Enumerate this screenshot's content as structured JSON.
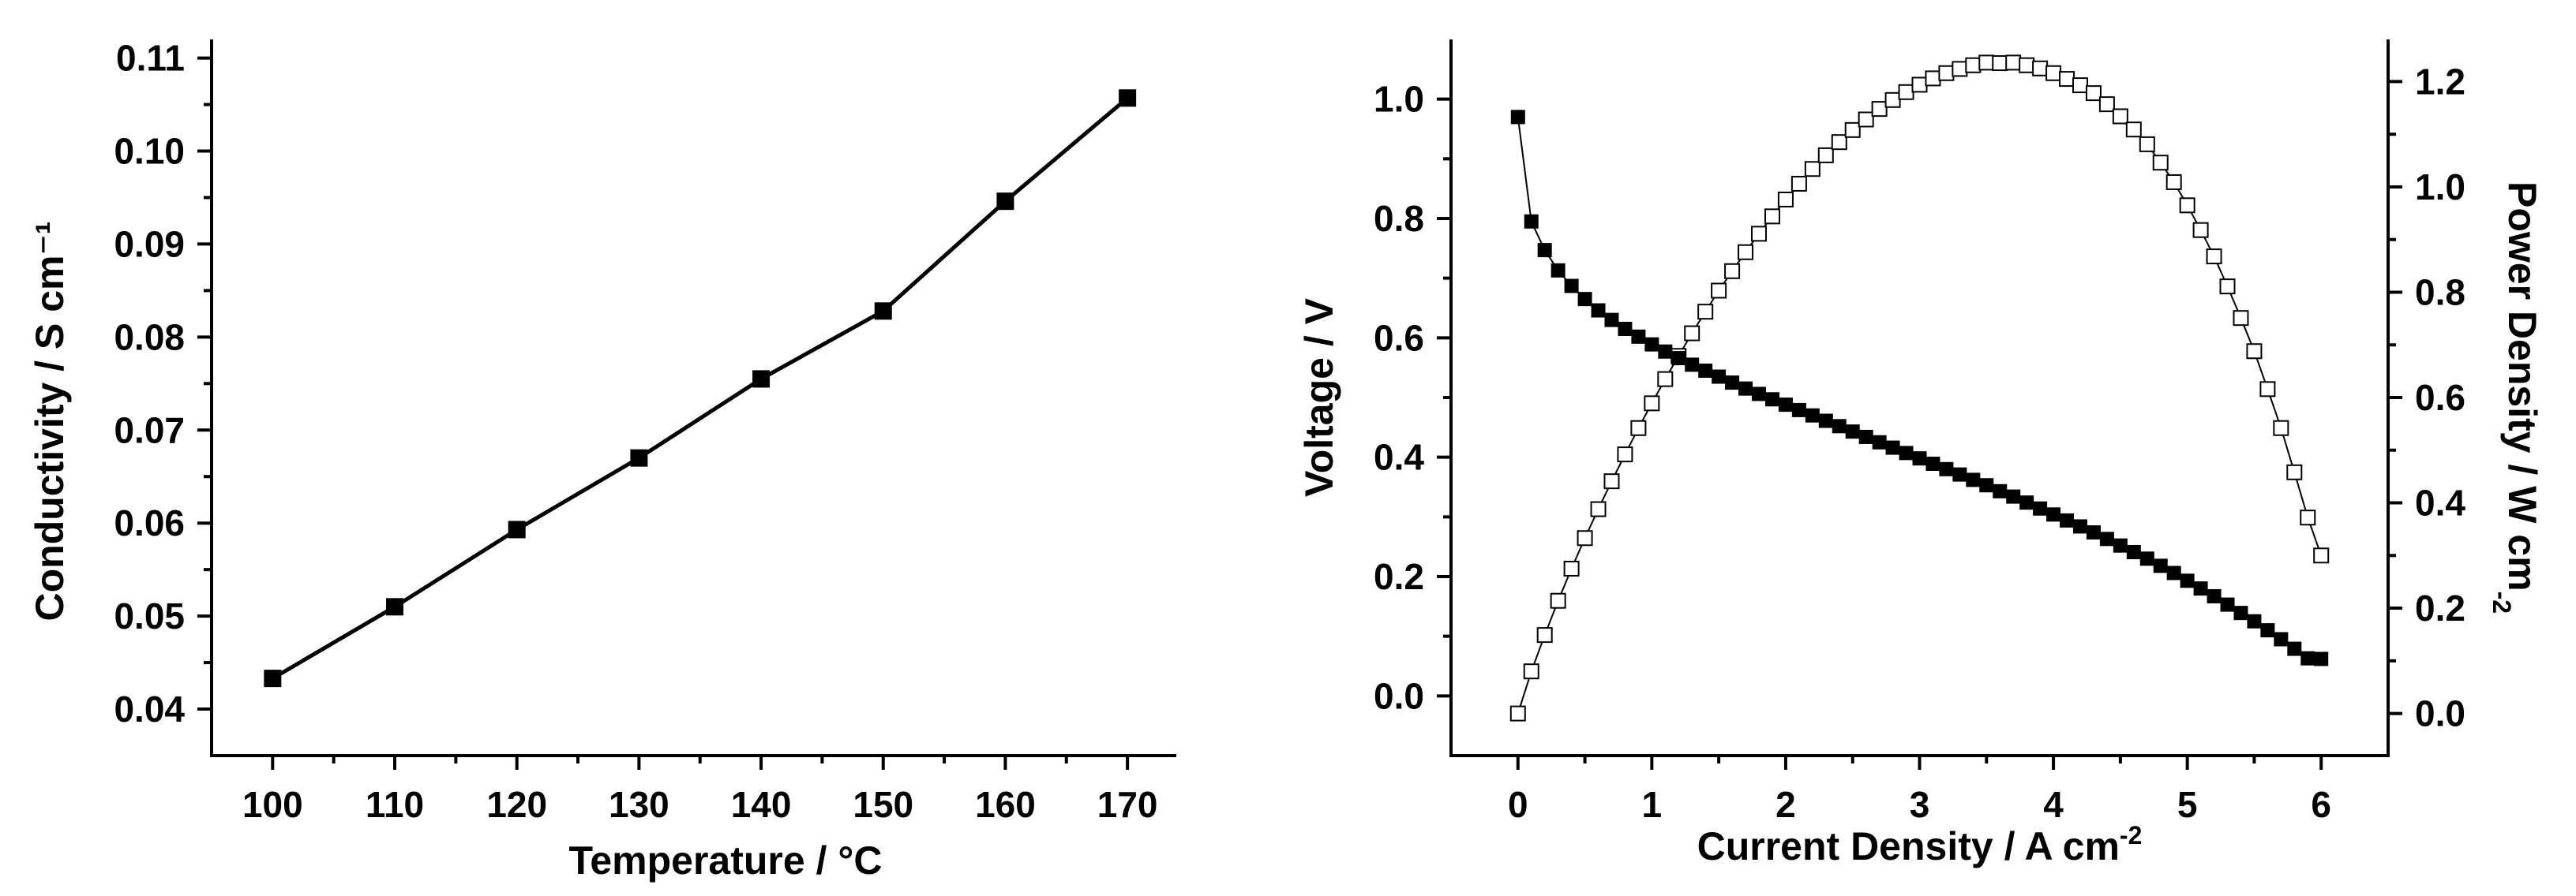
{
  "chart_data": [
    {
      "type": "line",
      "title": "",
      "xlabel": "Temperature / °C",
      "ylabel": "Conductivity / S cm⁻¹",
      "xlim": [
        95,
        174
      ],
      "ylim": [
        0.035,
        0.112
      ],
      "xticks": [
        100,
        110,
        120,
        130,
        140,
        150,
        160,
        170
      ],
      "xtick_labels": [
        "100",
        "110",
        "120",
        "130",
        "140",
        "150",
        "160",
        "170"
      ],
      "yticks": [
        0.04,
        0.05,
        0.06,
        0.07,
        0.08,
        0.09,
        0.1,
        0.11
      ],
      "ytick_labels": [
        "0.04",
        "0.05",
        "0.06",
        "0.07",
        "0.08",
        "0.09",
        "0.10",
        "0.11"
      ],
      "grid": false,
      "series": [
        {
          "name": "Conductivity",
          "marker": "filled-square",
          "x": [
            100,
            110,
            120,
            130,
            140,
            150,
            160,
            170
          ],
          "y": [
            0.0433,
            0.051,
            0.0593,
            0.067,
            0.0755,
            0.0828,
            0.0946,
            0.1057
          ]
        }
      ]
    },
    {
      "type": "line",
      "title": "",
      "xlabel": "Current Density / A cm",
      "xlabel_superscript": "-2",
      "ylabel": "Voltage / V",
      "y2label": "Power Density / W cm",
      "y2label_superscript": "-2",
      "xlim": [
        -0.5,
        6.5
      ],
      "ylim": [
        -0.1,
        1.1
      ],
      "y2lim": [
        -0.08,
        1.28
      ],
      "xticks": [
        0,
        1,
        2,
        3,
        4,
        5,
        6
      ],
      "xtick_labels": [
        "0",
        "1",
        "2",
        "3",
        "4",
        "5",
        "6"
      ],
      "yticks": [
        0.0,
        0.2,
        0.4,
        0.6,
        0.8,
        1.0
      ],
      "ytick_labels": [
        "0.0",
        "0.2",
        "0.4",
        "0.6",
        "0.8",
        "1.0"
      ],
      "y2ticks": [
        0.0,
        0.2,
        0.4,
        0.6,
        0.8,
        1.0,
        1.2
      ],
      "y2tick_labels": [
        "0.0",
        "0.2",
        "0.4",
        "0.6",
        "0.8",
        "1.0",
        "1.2"
      ],
      "grid": false,
      "series": [
        {
          "name": "Voltage",
          "axis": "left",
          "marker": "filled-square",
          "x": [
            0.0,
            0.1,
            0.2,
            0.3,
            0.4,
            0.5,
            0.6,
            0.7,
            0.8,
            0.9,
            1.0,
            1.1,
            1.2,
            1.3,
            1.4,
            1.5,
            1.6,
            1.7,
            1.8,
            1.9,
            2.0,
            2.1,
            2.2,
            2.3,
            2.4,
            2.5,
            2.6,
            2.7,
            2.8,
            2.9,
            3.0,
            3.1,
            3.2,
            3.3,
            3.4,
            3.5,
            3.6,
            3.7,
            3.8,
            3.9,
            4.0,
            4.1,
            4.2,
            4.3,
            4.4,
            4.5,
            4.6,
            4.7,
            4.8,
            4.9,
            5.0,
            5.1,
            5.2,
            5.3,
            5.4,
            5.5,
            5.6,
            5.7,
            5.8,
            5.9,
            6.0
          ],
          "y": [
            0.97,
            0.795,
            0.747,
            0.713,
            0.687,
            0.665,
            0.646,
            0.63,
            0.615,
            0.602,
            0.589,
            0.577,
            0.566,
            0.555,
            0.545,
            0.535,
            0.525,
            0.515,
            0.506,
            0.497,
            0.488,
            0.479,
            0.47,
            0.461,
            0.452,
            0.443,
            0.434,
            0.425,
            0.416,
            0.407,
            0.398,
            0.389,
            0.38,
            0.371,
            0.362,
            0.353,
            0.343,
            0.334,
            0.324,
            0.314,
            0.304,
            0.294,
            0.284,
            0.274,
            0.263,
            0.252,
            0.241,
            0.23,
            0.218,
            0.206,
            0.193,
            0.18,
            0.167,
            0.153,
            0.139,
            0.125,
            0.11,
            0.095,
            0.079,
            0.063,
            0.062
          ]
        },
        {
          "name": "Power Density",
          "axis": "right",
          "marker": "open-square",
          "x": [
            0.0,
            0.1,
            0.2,
            0.3,
            0.4,
            0.5,
            0.6,
            0.7,
            0.8,
            0.9,
            1.0,
            1.1,
            1.2,
            1.3,
            1.4,
            1.5,
            1.6,
            1.7,
            1.8,
            1.9,
            2.0,
            2.1,
            2.2,
            2.3,
            2.4,
            2.5,
            2.6,
            2.7,
            2.8,
            2.9,
            3.0,
            3.1,
            3.2,
            3.3,
            3.4,
            3.5,
            3.6,
            3.7,
            3.8,
            3.9,
            4.0,
            4.1,
            4.2,
            4.3,
            4.4,
            4.5,
            4.6,
            4.7,
            4.8,
            4.9,
            5.0,
            5.1,
            5.2,
            5.3,
            5.4,
            5.5,
            5.6,
            5.7,
            5.8,
            5.9,
            6.0
          ],
          "y": [
            0.0,
            0.08,
            0.149,
            0.214,
            0.275,
            0.333,
            0.388,
            0.441,
            0.492,
            0.542,
            0.589,
            0.635,
            0.679,
            0.722,
            0.763,
            0.803,
            0.84,
            0.876,
            0.911,
            0.944,
            0.976,
            1.006,
            1.034,
            1.06,
            1.085,
            1.108,
            1.128,
            1.148,
            1.165,
            1.18,
            1.194,
            1.206,
            1.216,
            1.224,
            1.231,
            1.236,
            1.235,
            1.236,
            1.231,
            1.225,
            1.216,
            1.205,
            1.193,
            1.178,
            1.157,
            1.134,
            1.109,
            1.081,
            1.046,
            1.009,
            0.965,
            0.918,
            0.868,
            0.811,
            0.751,
            0.688,
            0.616,
            0.542,
            0.458,
            0.372,
            0.3
          ]
        }
      ]
    }
  ]
}
